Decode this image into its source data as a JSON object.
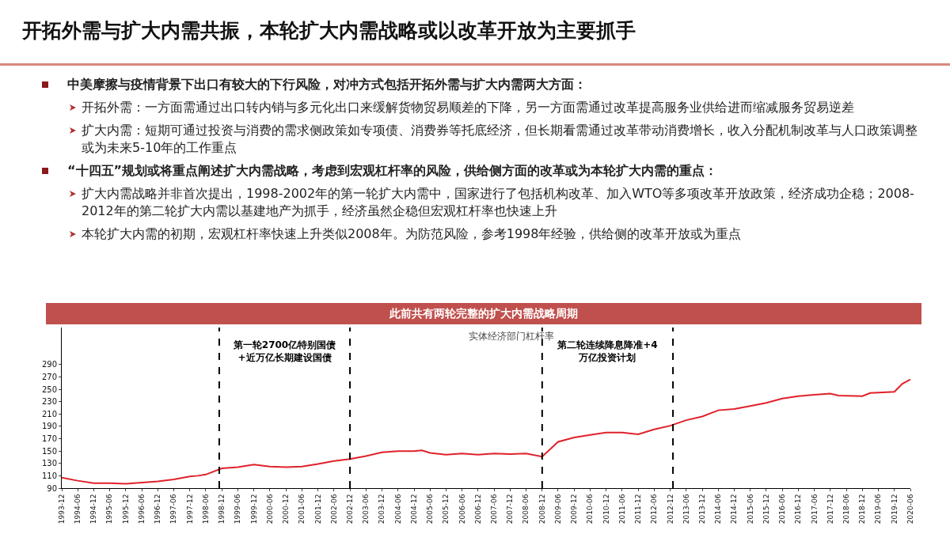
{
  "chart_data": {
    "type": "line",
    "title": "开拓外需与扩大内需共振，本轮扩大内需战略或以改革开放为主要抓手",
    "subtitle": "此前共有两轮完整的扩大内需战略周期",
    "annotations": [
      "中美摩擦与疫情背景下出口有较大的下行风险，对冲方式包括开拓外需与扩大内需两大方面：",
      "开拓外需：一方面需通过出口转内销与多元化出口来缓解货物贸易顺差的下降，另一方面需通过改革提高服务业供给进而缩减服务贸易逆差",
      "扩大内需：短期可通过投资与消费的需求侧政策如专项债、消费券等托底经济，但长期看需通过改革带动消费增长，收入分配机制改革与人口政策调整或为未来5-10年的工作重点",
      "“十四五”规划或将重点阐述扩大内需战略，考虑到宏观杠杆率的风险，供给侧方面的改革或为本轮扩大内需的重点：",
      "扩大内需战略并非首次提出，1998-2002年的第一轮扩大内需中，国家进行了包括机构改革、加入WTO等多项改革开放政策，经济成功企稳；2008-2012年的第二轮扩大内需以基建地产为抓手，经济虽然企稳但宏观杠杆率也快速上升",
      "本轮扩大内需的初期，宏观杠杆率快速上升类似2008年。为防范风险，参考1998年经验，供给侧的改革开放或为重点",
      "实体经济部门杠杆率",
      "第一轮2700亿特别国债+近万亿长期建设国债",
      "第二轮连续降息降准+4万亿投资计划"
    ],
    "x": [
      "1993-12",
      "1994-06",
      "1994-12",
      "1995-06",
      "1995-12",
      "1996-06",
      "1996-12",
      "1997-06",
      "1997-12",
      "1998-03",
      "1998-06",
      "1998-12",
      "1999-06",
      "1999-12",
      "2000-06",
      "2000-12",
      "2001-06",
      "2001-12",
      "2002-06",
      "2002-12",
      "2003-06",
      "2003-12",
      "2004-06",
      "2004-12",
      "2005-03",
      "2005-06",
      "2005-12",
      "2006-06",
      "2006-12",
      "2007-06",
      "2007-12",
      "2008-06",
      "2008-12",
      "2009-06",
      "2009-12",
      "2010-06",
      "2010-12",
      "2011-06",
      "2011-12",
      "2012-06",
      "2012-12",
      "2013-06",
      "2013-12",
      "2014-06",
      "2014-12",
      "2015-06",
      "2015-12",
      "2016-06",
      "2016-12",
      "2017-06",
      "2017-12",
      "2018-03",
      "2018-12",
      "2019-03",
      "2019-12",
      "2020-03",
      "2020-06"
    ],
    "series": [
      {
        "color": "#e0212b",
        "values": [
          107,
          102,
          98,
          98,
          97,
          99,
          101,
          104,
          109,
          110,
          112,
          122,
          124,
          128,
          125,
          124,
          125,
          129,
          134,
          137,
          142,
          148,
          150,
          150,
          151,
          147,
          144,
          146,
          144,
          146,
          145,
          146,
          141,
          165,
          172,
          176,
          180,
          180,
          177,
          185,
          191,
          200,
          206,
          216,
          218,
          223,
          228,
          235,
          239,
          241,
          243,
          240,
          239,
          244,
          246,
          259,
          266
        ]
      }
    ],
    "xlim": [
      "1993-12",
      "2020-06"
    ],
    "xticks": [
      "1993-12",
      "1994-06",
      "1994-12",
      "1995-06",
      "1995-12",
      "1996-06",
      "1996-12",
      "1997-06",
      "1997-12",
      "1998-06",
      "1998-12",
      "1999-06",
      "1999-12",
      "2000-06",
      "2000-12",
      "2001-06",
      "2001-12",
      "2002-06",
      "2002-12",
      "2003-06",
      "2003-12",
      "2004-06",
      "2004-12",
      "2005-06",
      "2005-12",
      "2006-06",
      "2006-12",
      "2007-06",
      "2007-12",
      "2008-06",
      "2008-12",
      "2009-06",
      "2009-12",
      "2010-06",
      "2010-12",
      "2011-06",
      "2011-12",
      "2012-06",
      "2012-12",
      "2013-06",
      "2013-12",
      "2014-06",
      "2014-12",
      "2015-06",
      "2015-12",
      "2016-06",
      "2016-12",
      "2017-06",
      "2017-12",
      "2018-06",
      "2018-12",
      "2019-06",
      "2019-12",
      "2020-06"
    ],
    "ylim": [
      90,
      350
    ],
    "yticks": [
      90,
      110,
      130,
      150,
      170,
      190,
      210,
      230,
      250,
      270,
      290
    ],
    "ref_lines": [
      {
        "axis": "x",
        "value": "1998-11",
        "color": "#000000",
        "line_style": "dashed"
      },
      {
        "axis": "x",
        "value": "2002-12",
        "color": "#000000",
        "line_style": "dashed"
      },
      {
        "axis": "x",
        "value": "2008-12",
        "color": "#000000",
        "line_style": "dashed"
      },
      {
        "axis": "x",
        "value": "2013-01",
        "color": "#000000",
        "line_style": "dashed"
      }
    ],
    "grid": false,
    "marker": "none",
    "line_style": "solid"
  }
}
